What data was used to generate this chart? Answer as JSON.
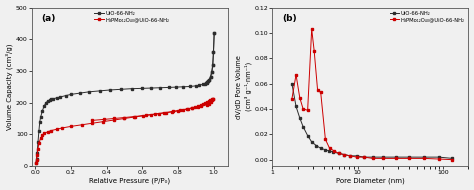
{
  "panel_a": {
    "title": "(a)",
    "xlabel": "Relative Pressure (P/P₀)",
    "ylabel": "Volume Capacity (cm³/g)",
    "ylim": [
      0,
      500
    ],
    "xlim": [
      -0.02,
      1.08
    ],
    "yticks": [
      0,
      100,
      200,
      300,
      400,
      500
    ],
    "xticks": [
      0.0,
      0.2,
      0.4,
      0.6,
      0.8,
      1.0
    ],
    "black_adsorption": [
      0.004,
      0.007,
      0.01,
      0.015,
      0.02,
      0.025,
      0.03,
      0.04,
      0.05,
      0.06,
      0.07,
      0.08,
      0.09,
      0.1,
      0.12,
      0.14,
      0.17,
      0.2,
      0.25,
      0.3,
      0.36,
      0.42,
      0.48,
      0.54,
      0.6,
      0.65,
      0.7,
      0.75,
      0.79,
      0.83,
      0.87,
      0.9,
      0.92,
      0.94,
      0.96,
      0.975,
      0.983,
      0.99,
      0.995,
      0.999,
      1.003
    ],
    "black_ads_vol": [
      10,
      22,
      40,
      75,
      110,
      140,
      155,
      175,
      190,
      200,
      205,
      208,
      210,
      212,
      215,
      218,
      222,
      226,
      230,
      234,
      237,
      240,
      242,
      244,
      245,
      246,
      247,
      248,
      249,
      250,
      251,
      253,
      255,
      258,
      263,
      272,
      282,
      298,
      320,
      360,
      420
    ],
    "black_desorption": [
      1.003,
      0.999,
      0.995,
      0.99,
      0.983,
      0.975,
      0.97,
      0.965,
      0.96,
      0.955,
      0.95
    ],
    "black_des_vol": [
      420,
      360,
      320,
      298,
      282,
      272,
      268,
      266,
      264,
      262,
      260
    ],
    "red_adsorption": [
      0.004,
      0.007,
      0.01,
      0.015,
      0.02,
      0.03,
      0.04,
      0.05,
      0.07,
      0.09,
      0.12,
      0.15,
      0.2,
      0.26,
      0.32,
      0.38,
      0.44,
      0.5,
      0.56,
      0.62,
      0.67,
      0.72,
      0.77,
      0.81,
      0.85,
      0.88,
      0.91,
      0.93,
      0.96,
      0.975,
      0.985,
      0.993,
      0.998
    ],
    "red_ads_vol": [
      10,
      20,
      35,
      55,
      72,
      88,
      97,
      103,
      108,
      112,
      116,
      120,
      125,
      130,
      135,
      140,
      145,
      150,
      155,
      160,
      164,
      168,
      172,
      176,
      180,
      183,
      186,
      189,
      193,
      197,
      202,
      208,
      213
    ],
    "red_desorption": [
      0.998,
      0.99,
      0.982,
      0.973,
      0.963,
      0.952,
      0.94,
      0.927,
      0.912,
      0.895,
      0.876,
      0.854,
      0.829,
      0.8,
      0.768,
      0.732,
      0.693,
      0.65,
      0.604,
      0.554,
      0.5,
      0.443,
      0.383,
      0.32
    ],
    "red_des_vol": [
      213,
      210,
      207,
      204,
      201,
      198,
      195,
      192,
      189,
      186,
      183,
      180,
      177,
      174,
      171,
      168,
      165,
      162,
      159,
      156,
      153,
      150,
      147,
      144
    ],
    "black_color": "#2d2d2d",
    "red_color": "#cc0000",
    "legend1": "UiO-66-NH₂",
    "legend2": "H₃PMo₁₂O₄₀@UiO-66-NH₂"
  },
  "panel_b": {
    "title": "(b)",
    "xlabel": "Pore Diameter (nm)",
    "ylabel": "dV/dD Pore Volume\n(cm³ g⁻¹·nm⁻¹)",
    "ylim": [
      -0.005,
      0.12
    ],
    "xlim_log": [
      1,
      200
    ],
    "yticks": [
      0.0,
      0.02,
      0.04,
      0.06,
      0.08,
      0.1,
      0.12
    ],
    "black_x": [
      1.7,
      1.9,
      2.1,
      2.3,
      2.6,
      2.9,
      3.3,
      3.7,
      4.1,
      4.6,
      5.2,
      6.0,
      7.0,
      8.2,
      9.8,
      12,
      15,
      20,
      28,
      40,
      60,
      90,
      130
    ],
    "black_y": [
      0.06,
      0.042,
      0.033,
      0.026,
      0.019,
      0.014,
      0.011,
      0.009,
      0.008,
      0.007,
      0.006,
      0.005,
      0.004,
      0.003,
      0.003,
      0.002,
      0.002,
      0.002,
      0.002,
      0.002,
      0.002,
      0.002,
      0.001
    ],
    "red_x": [
      1.7,
      1.9,
      2.1,
      2.3,
      2.6,
      2.9,
      3.1,
      3.4,
      3.7,
      4.2,
      4.7,
      5.3,
      6.0,
      7.0,
      8.2,
      9.8,
      12,
      15,
      20,
      28,
      40,
      60,
      90,
      130
    ],
    "red_y": [
      0.048,
      0.067,
      0.049,
      0.04,
      0.039,
      0.103,
      0.086,
      0.055,
      0.053,
      0.016,
      0.009,
      0.007,
      0.005,
      0.004,
      0.003,
      0.002,
      0.002,
      0.001,
      0.001,
      0.001,
      0.001,
      0.001,
      0.0005,
      0.0
    ],
    "black_color": "#2d2d2d",
    "red_color": "#cc0000",
    "legend1": "UiO-66-NH₂",
    "legend2": "H₃PMo₁₂O₄₀@UiO-66-NH₂"
  }
}
